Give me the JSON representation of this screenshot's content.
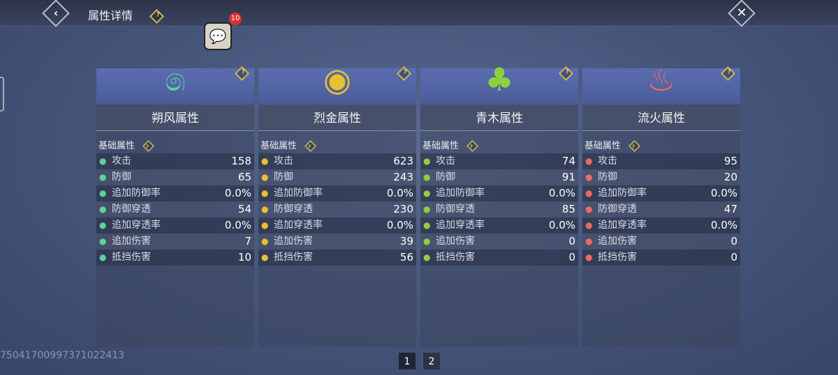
{
  "header": {
    "title": "属性详情",
    "help": "?",
    "back_icon": "chevron-left-icon",
    "close_icon": "close-icon"
  },
  "chat": {
    "badge": "10",
    "icon": "chat-bubbles-icon"
  },
  "colors": {
    "wind": "#5ed1a0",
    "metal": "#e6c22c",
    "wood": "#8ed03c",
    "fire": "#f06a60"
  },
  "panels": [
    {
      "name": "朔风属性",
      "icon": "෧",
      "section": "基础属性",
      "rows": [
        {
          "label": "攻击",
          "value": "158"
        },
        {
          "label": "防御",
          "value": "65"
        },
        {
          "label": "追加防御率",
          "value": "0.0%"
        },
        {
          "label": "防御穿透",
          "value": "54"
        },
        {
          "label": "追加穿透率",
          "value": "0.0%"
        },
        {
          "label": "追加伤害",
          "value": "7"
        },
        {
          "label": "抵挡伤害",
          "value": "10"
        }
      ]
    },
    {
      "name": "烈金属性",
      "icon": "◉",
      "section": "基础属性",
      "rows": [
        {
          "label": "攻击",
          "value": "623"
        },
        {
          "label": "防御",
          "value": "243"
        },
        {
          "label": "追加防御率",
          "value": "0.0%"
        },
        {
          "label": "防御穿透",
          "value": "230"
        },
        {
          "label": "追加穿透率",
          "value": "0.0%"
        },
        {
          "label": "追加伤害",
          "value": "39"
        },
        {
          "label": "抵挡伤害",
          "value": "56"
        }
      ]
    },
    {
      "name": "青木属性",
      "icon": "♣",
      "section": "基础属性",
      "rows": [
        {
          "label": "攻击",
          "value": "74"
        },
        {
          "label": "防御",
          "value": "91"
        },
        {
          "label": "追加防御率",
          "value": "0.0%"
        },
        {
          "label": "防御穿透",
          "value": "85"
        },
        {
          "label": "追加穿透率",
          "value": "0.0%"
        },
        {
          "label": "追加伤害",
          "value": "0"
        },
        {
          "label": "抵挡伤害",
          "value": "0"
        }
      ]
    },
    {
      "name": "流火属性",
      "icon": "♨",
      "section": "基础属性",
      "rows": [
        {
          "label": "攻击",
          "value": "95"
        },
        {
          "label": "防御",
          "value": "20"
        },
        {
          "label": "追加防御率",
          "value": "0.0%"
        },
        {
          "label": "防御穿透",
          "value": "47"
        },
        {
          "label": "追加穿透率",
          "value": "0.0%"
        },
        {
          "label": "追加伤害",
          "value": "0"
        },
        {
          "label": "抵挡伤害",
          "value": "0"
        }
      ]
    }
  ],
  "id_text": "750417009973710224​13",
  "pagination": {
    "pages": [
      "1",
      "2"
    ],
    "current": "1"
  }
}
